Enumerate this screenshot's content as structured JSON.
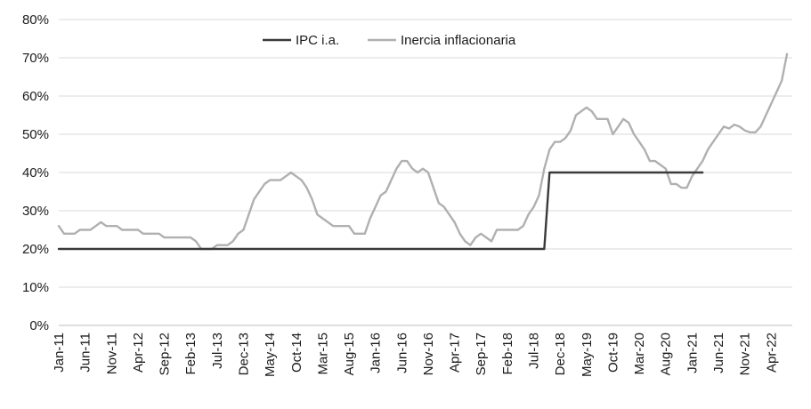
{
  "chart_data": {
    "type": "line",
    "title": "",
    "xlabel": "",
    "ylabel": "",
    "ylim": [
      0,
      0.8
    ],
    "y_ticks": [
      "0%",
      "10%",
      "20%",
      "30%",
      "40%",
      "50%",
      "60%",
      "70%",
      "80%"
    ],
    "x_tick_labels": [
      "Jan-11",
      "Jun-11",
      "Nov-11",
      "Apr-12",
      "Sep-12",
      "Feb-13",
      "Jul-13",
      "Dec-13",
      "May-14",
      "Oct-14",
      "Mar-15",
      "Aug-15",
      "Jan-16",
      "Jun-16",
      "Nov-16",
      "Apr-17",
      "Sep-17",
      "Feb-18",
      "Jul-18",
      "Dec-18",
      "May-19",
      "Oct-19",
      "Mar-20",
      "Aug-20",
      "Jan-21",
      "Jun-21",
      "Nov-21",
      "Apr-22"
    ],
    "x_start": "2011-01",
    "x_end": "2022-08",
    "grid": "horizontal",
    "legend_position": "top-center",
    "series": [
      {
        "name": "IPC i.a.",
        "color": "#3a3a3a",
        "points": [
          {
            "x": "2011-01",
            "y": 0.2
          },
          {
            "x": "2018-09",
            "y": 0.2
          },
          {
            "x": "2018-10",
            "y": 0.4
          },
          {
            "x": "2021-03",
            "y": 0.4
          }
        ]
      },
      {
        "name": "Inercia inflacionaria",
        "color": "#b0b0b0",
        "points": [
          {
            "x": "2011-01",
            "y": 0.26
          },
          {
            "x": "2011-02",
            "y": 0.24
          },
          {
            "x": "2011-03",
            "y": 0.24
          },
          {
            "x": "2011-04",
            "y": 0.24
          },
          {
            "x": "2011-05",
            "y": 0.25
          },
          {
            "x": "2011-06",
            "y": 0.25
          },
          {
            "x": "2011-07",
            "y": 0.25
          },
          {
            "x": "2011-08",
            "y": 0.26
          },
          {
            "x": "2011-09",
            "y": 0.27
          },
          {
            "x": "2011-10",
            "y": 0.26
          },
          {
            "x": "2011-11",
            "y": 0.26
          },
          {
            "x": "2011-12",
            "y": 0.26
          },
          {
            "x": "2012-01",
            "y": 0.25
          },
          {
            "x": "2012-02",
            "y": 0.25
          },
          {
            "x": "2012-03",
            "y": 0.25
          },
          {
            "x": "2012-04",
            "y": 0.25
          },
          {
            "x": "2012-05",
            "y": 0.24
          },
          {
            "x": "2012-06",
            "y": 0.24
          },
          {
            "x": "2012-07",
            "y": 0.24
          },
          {
            "x": "2012-08",
            "y": 0.24
          },
          {
            "x": "2012-09",
            "y": 0.23
          },
          {
            "x": "2012-10",
            "y": 0.23
          },
          {
            "x": "2012-11",
            "y": 0.23
          },
          {
            "x": "2012-12",
            "y": 0.23
          },
          {
            "x": "2013-01",
            "y": 0.23
          },
          {
            "x": "2013-02",
            "y": 0.23
          },
          {
            "x": "2013-03",
            "y": 0.22
          },
          {
            "x": "2013-04",
            "y": 0.2
          },
          {
            "x": "2013-05",
            "y": 0.2
          },
          {
            "x": "2013-06",
            "y": 0.2
          },
          {
            "x": "2013-07",
            "y": 0.21
          },
          {
            "x": "2013-08",
            "y": 0.21
          },
          {
            "x": "2013-09",
            "y": 0.21
          },
          {
            "x": "2013-10",
            "y": 0.22
          },
          {
            "x": "2013-11",
            "y": 0.24
          },
          {
            "x": "2013-12",
            "y": 0.25
          },
          {
            "x": "2014-01",
            "y": 0.29
          },
          {
            "x": "2014-02",
            "y": 0.33
          },
          {
            "x": "2014-03",
            "y": 0.35
          },
          {
            "x": "2014-04",
            "y": 0.37
          },
          {
            "x": "2014-05",
            "y": 0.38
          },
          {
            "x": "2014-06",
            "y": 0.38
          },
          {
            "x": "2014-07",
            "y": 0.38
          },
          {
            "x": "2014-08",
            "y": 0.39
          },
          {
            "x": "2014-09",
            "y": 0.4
          },
          {
            "x": "2014-10",
            "y": 0.39
          },
          {
            "x": "2014-11",
            "y": 0.38
          },
          {
            "x": "2014-12",
            "y": 0.36
          },
          {
            "x": "2015-01",
            "y": 0.33
          },
          {
            "x": "2015-02",
            "y": 0.29
          },
          {
            "x": "2015-03",
            "y": 0.28
          },
          {
            "x": "2015-04",
            "y": 0.27
          },
          {
            "x": "2015-05",
            "y": 0.26
          },
          {
            "x": "2015-06",
            "y": 0.26
          },
          {
            "x": "2015-07",
            "y": 0.26
          },
          {
            "x": "2015-08",
            "y": 0.26
          },
          {
            "x": "2015-09",
            "y": 0.24
          },
          {
            "x": "2015-10",
            "y": 0.24
          },
          {
            "x": "2015-11",
            "y": 0.24
          },
          {
            "x": "2015-12",
            "y": 0.28
          },
          {
            "x": "2016-01",
            "y": 0.31
          },
          {
            "x": "2016-02",
            "y": 0.34
          },
          {
            "x": "2016-03",
            "y": 0.35
          },
          {
            "x": "2016-04",
            "y": 0.38
          },
          {
            "x": "2016-05",
            "y": 0.41
          },
          {
            "x": "2016-06",
            "y": 0.43
          },
          {
            "x": "2016-07",
            "y": 0.43
          },
          {
            "x": "2016-08",
            "y": 0.41
          },
          {
            "x": "2016-09",
            "y": 0.4
          },
          {
            "x": "2016-10",
            "y": 0.41
          },
          {
            "x": "2016-11",
            "y": 0.4
          },
          {
            "x": "2016-12",
            "y": 0.36
          },
          {
            "x": "2017-01",
            "y": 0.32
          },
          {
            "x": "2017-02",
            "y": 0.31
          },
          {
            "x": "2017-03",
            "y": 0.29
          },
          {
            "x": "2017-04",
            "y": 0.27
          },
          {
            "x": "2017-05",
            "y": 0.24
          },
          {
            "x": "2017-06",
            "y": 0.22
          },
          {
            "x": "2017-07",
            "y": 0.21
          },
          {
            "x": "2017-08",
            "y": 0.23
          },
          {
            "x": "2017-09",
            "y": 0.24
          },
          {
            "x": "2017-10",
            "y": 0.23
          },
          {
            "x": "2017-11",
            "y": 0.22
          },
          {
            "x": "2017-12",
            "y": 0.25
          },
          {
            "x": "2018-01",
            "y": 0.25
          },
          {
            "x": "2018-02",
            "y": 0.25
          },
          {
            "x": "2018-03",
            "y": 0.25
          },
          {
            "x": "2018-04",
            "y": 0.25
          },
          {
            "x": "2018-05",
            "y": 0.26
          },
          {
            "x": "2018-06",
            "y": 0.29
          },
          {
            "x": "2018-07",
            "y": 0.31
          },
          {
            "x": "2018-08",
            "y": 0.34
          },
          {
            "x": "2018-09",
            "y": 0.41
          },
          {
            "x": "2018-10",
            "y": 0.46
          },
          {
            "x": "2018-11",
            "y": 0.48
          },
          {
            "x": "2018-12",
            "y": 0.48
          },
          {
            "x": "2019-01",
            "y": 0.49
          },
          {
            "x": "2019-02",
            "y": 0.51
          },
          {
            "x": "2019-03",
            "y": 0.55
          },
          {
            "x": "2019-04",
            "y": 0.56
          },
          {
            "x": "2019-05",
            "y": 0.57
          },
          {
            "x": "2019-06",
            "y": 0.56
          },
          {
            "x": "2019-07",
            "y": 0.54
          },
          {
            "x": "2019-08",
            "y": 0.54
          },
          {
            "x": "2019-09",
            "y": 0.54
          },
          {
            "x": "2019-10",
            "y": 0.5
          },
          {
            "x": "2019-11",
            "y": 0.52
          },
          {
            "x": "2019-12",
            "y": 0.54
          },
          {
            "x": "2020-01",
            "y": 0.53
          },
          {
            "x": "2020-02",
            "y": 0.5
          },
          {
            "x": "2020-03",
            "y": 0.48
          },
          {
            "x": "2020-04",
            "y": 0.46
          },
          {
            "x": "2020-05",
            "y": 0.43
          },
          {
            "x": "2020-06",
            "y": 0.43
          },
          {
            "x": "2020-07",
            "y": 0.42
          },
          {
            "x": "2020-08",
            "y": 0.41
          },
          {
            "x": "2020-09",
            "y": 0.37
          },
          {
            "x": "2020-10",
            "y": 0.37
          },
          {
            "x": "2020-11",
            "y": 0.36
          },
          {
            "x": "2020-12",
            "y": 0.36
          },
          {
            "x": "2021-01",
            "y": 0.39
          },
          {
            "x": "2021-02",
            "y": 0.41
          },
          {
            "x": "2021-03",
            "y": 0.43
          },
          {
            "x": "2021-04",
            "y": 0.46
          },
          {
            "x": "2021-05",
            "y": 0.48
          },
          {
            "x": "2021-06",
            "y": 0.5
          },
          {
            "x": "2021-07",
            "y": 0.52
          },
          {
            "x": "2021-08",
            "y": 0.515
          },
          {
            "x": "2021-09",
            "y": 0.525
          },
          {
            "x": "2021-10",
            "y": 0.52
          },
          {
            "x": "2021-11",
            "y": 0.51
          },
          {
            "x": "2021-12",
            "y": 0.505
          },
          {
            "x": "2022-01",
            "y": 0.505
          },
          {
            "x": "2022-02",
            "y": 0.52
          },
          {
            "x": "2022-03",
            "y": 0.55
          },
          {
            "x": "2022-04",
            "y": 0.58
          },
          {
            "x": "2022-05",
            "y": 0.61
          },
          {
            "x": "2022-06",
            "y": 0.64
          },
          {
            "x": "2022-07",
            "y": 0.71
          }
        ]
      }
    ]
  }
}
